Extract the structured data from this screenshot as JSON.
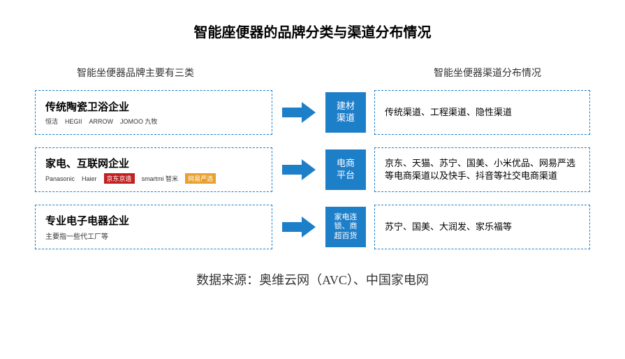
{
  "title": "智能座便器的品牌分类与渠道分布情况",
  "subtitle_left": "智能坐便器品牌主要有三类",
  "subtitle_right": "智能坐便器渠道分布情况",
  "colors": {
    "primary": "#1e7fc9",
    "arrow_fill": "#1e7fc9",
    "border_dash": "#1e7fc9",
    "text": "#000000",
    "bg": "#ffffff"
  },
  "rows": [
    {
      "left_title": "传统陶瓷卫浴企业",
      "brands": [
        "恒洁",
        "HEGII",
        "ARROW",
        "JOMOO 九牧"
      ],
      "mid_label": "建材\n渠道",
      "right_text": "传统渠道、工程渠道、隐性渠道"
    },
    {
      "left_title": "家电、互联网企业",
      "brands": [
        "Panasonic",
        "Haier",
        "京东京造",
        "smartmi 智米",
        "网易严选"
      ],
      "mid_label": "电商\n平台",
      "right_text": "京东、天猫、苏宁、国美、小米优品、网易严选等电商渠道以及快手、抖音等社交电商渠道"
    },
    {
      "left_title": "专业电子电器企业",
      "brands_note": "主要指一些代工厂等",
      "mid_label": "家电连\n锁、商\n超百货",
      "right_text": "苏宁、国美、大润发、家乐福等"
    }
  ],
  "footer": "数据来源：奥维云网（AVC）、中国家电网"
}
